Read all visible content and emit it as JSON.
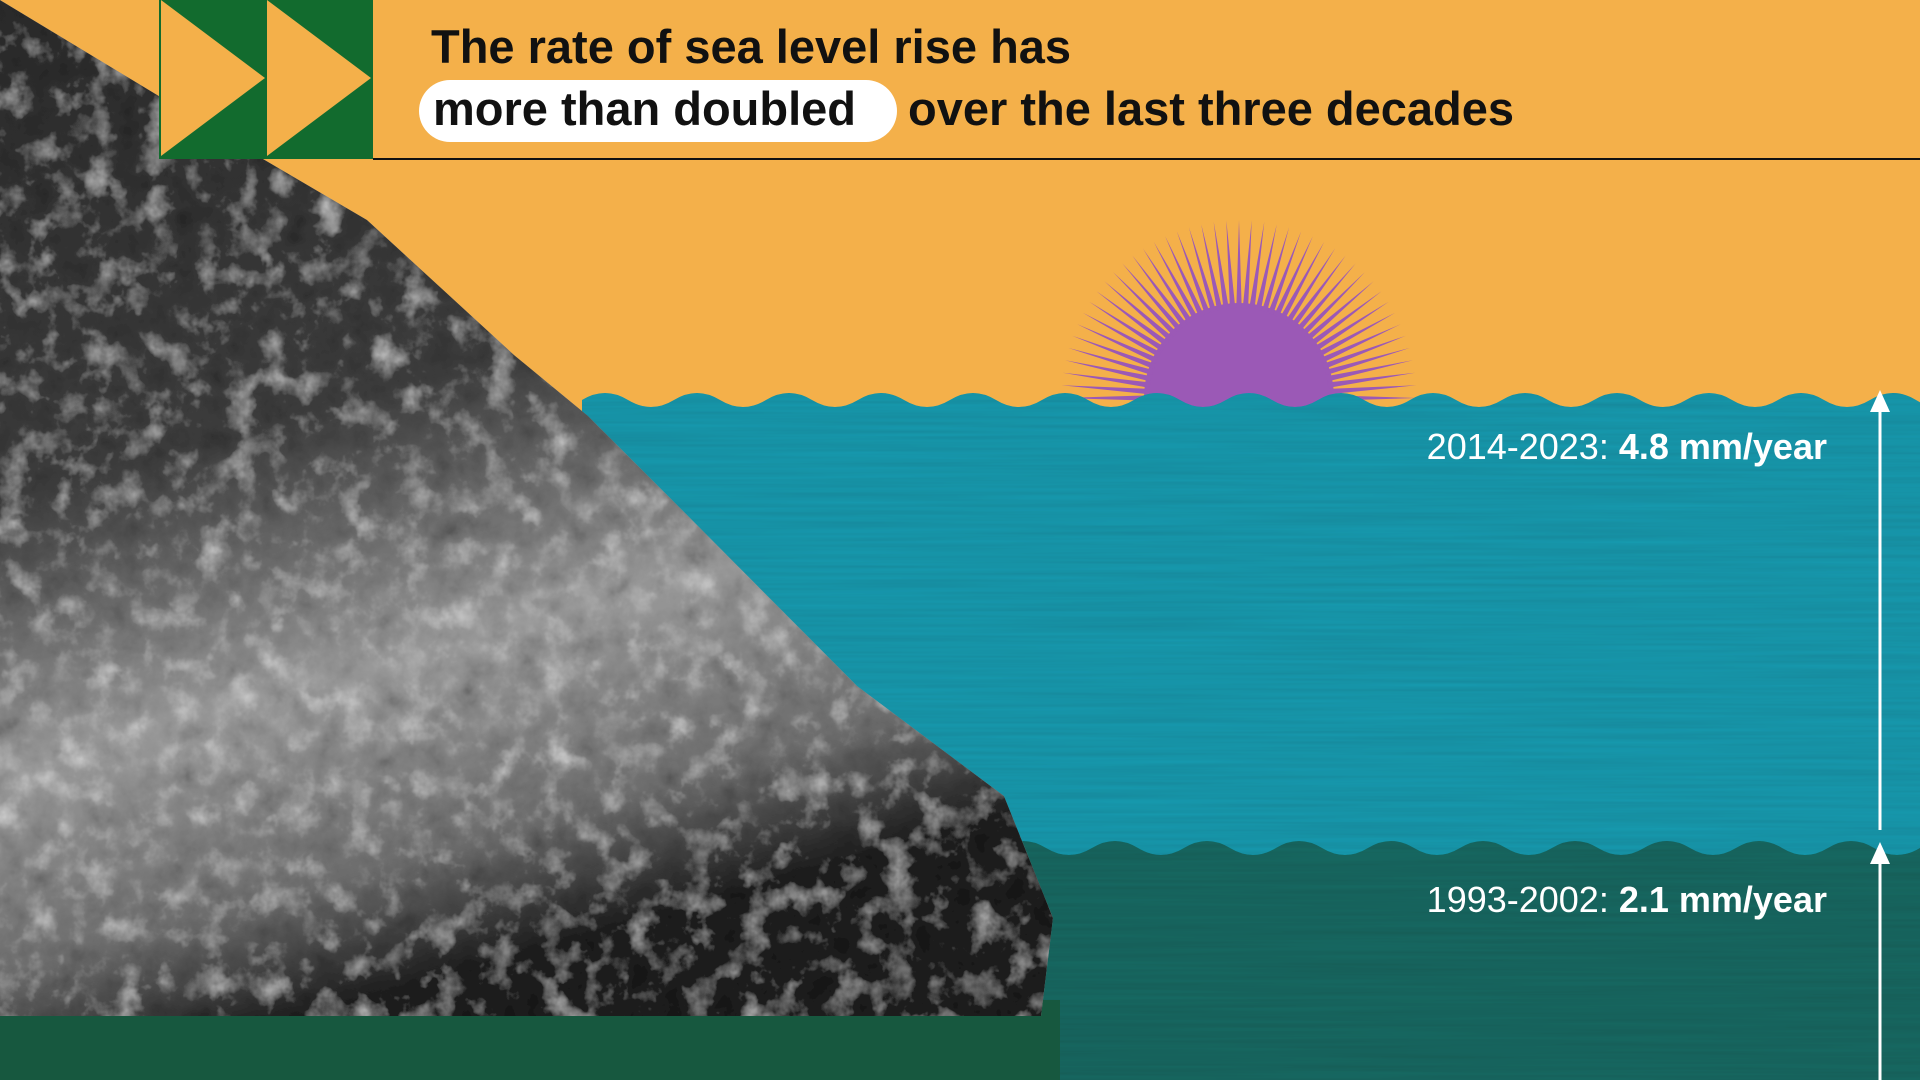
{
  "title": {
    "line1": "The rate of sea level rise has",
    "highlight": "more than doubled",
    "line2_rest": "over the last three decades"
  },
  "periods": [
    {
      "years": "2014-2023:",
      "rate": "4.8 mm/year"
    },
    {
      "years": "1993-2002:",
      "rate": "2.1 mm/year"
    }
  ]
}
